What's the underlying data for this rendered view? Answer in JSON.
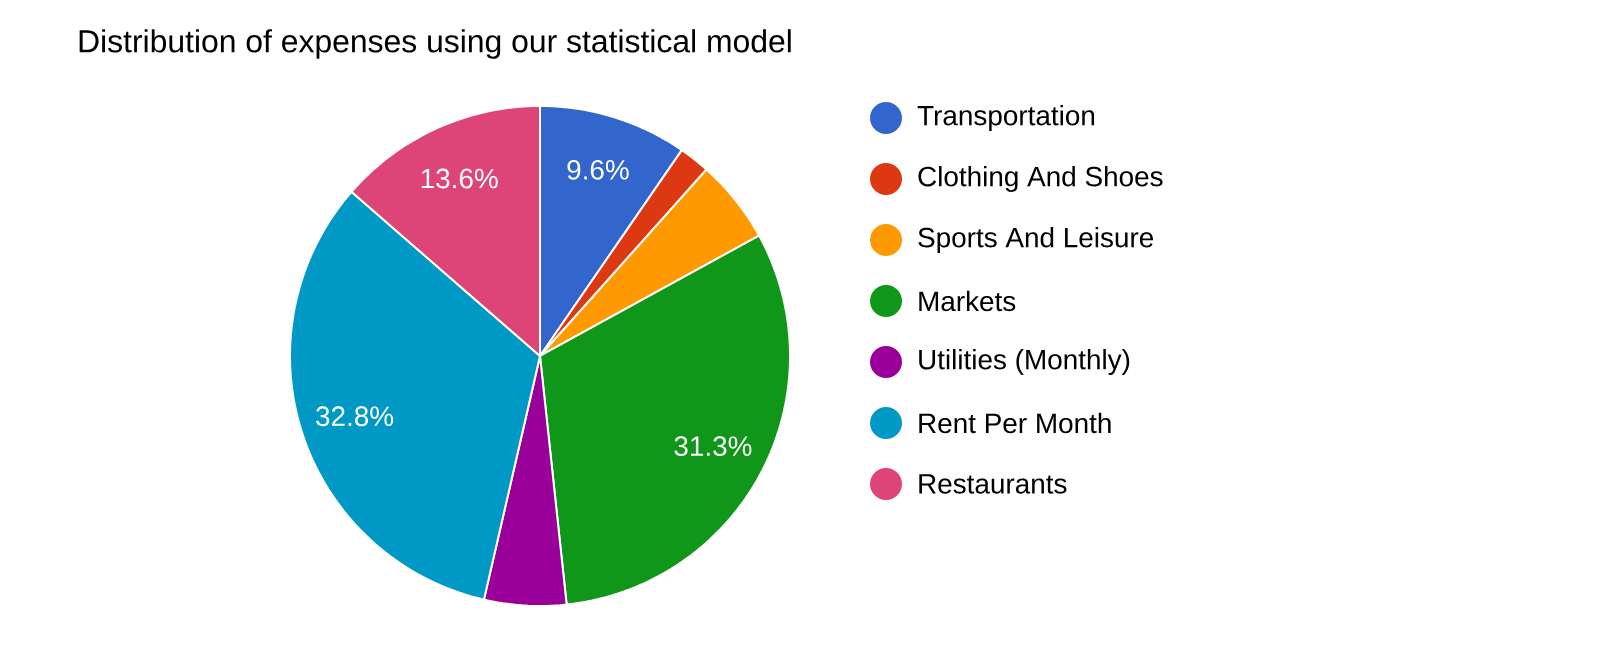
{
  "chart_data": {
    "type": "pie",
    "title": "Distribution of expenses using our statistical model",
    "categories": [
      "Transportation",
      "Clothing And Shoes",
      "Sports And Leisure",
      "Markets",
      "Utilities (Monthly)",
      "Rent Per Month",
      "Restaurants"
    ],
    "values": [
      9.6,
      2.0,
      5.4,
      31.3,
      5.3,
      32.8,
      13.6
    ],
    "colors": [
      "#3366cc",
      "#dc3912",
      "#ff9900",
      "#109618",
      "#990099",
      "#0099c6",
      "#dd4477"
    ],
    "value_labels": [
      "9.6%",
      null,
      null,
      "31.3%",
      null,
      "32.8%",
      "13.6%"
    ],
    "legend": "right"
  }
}
